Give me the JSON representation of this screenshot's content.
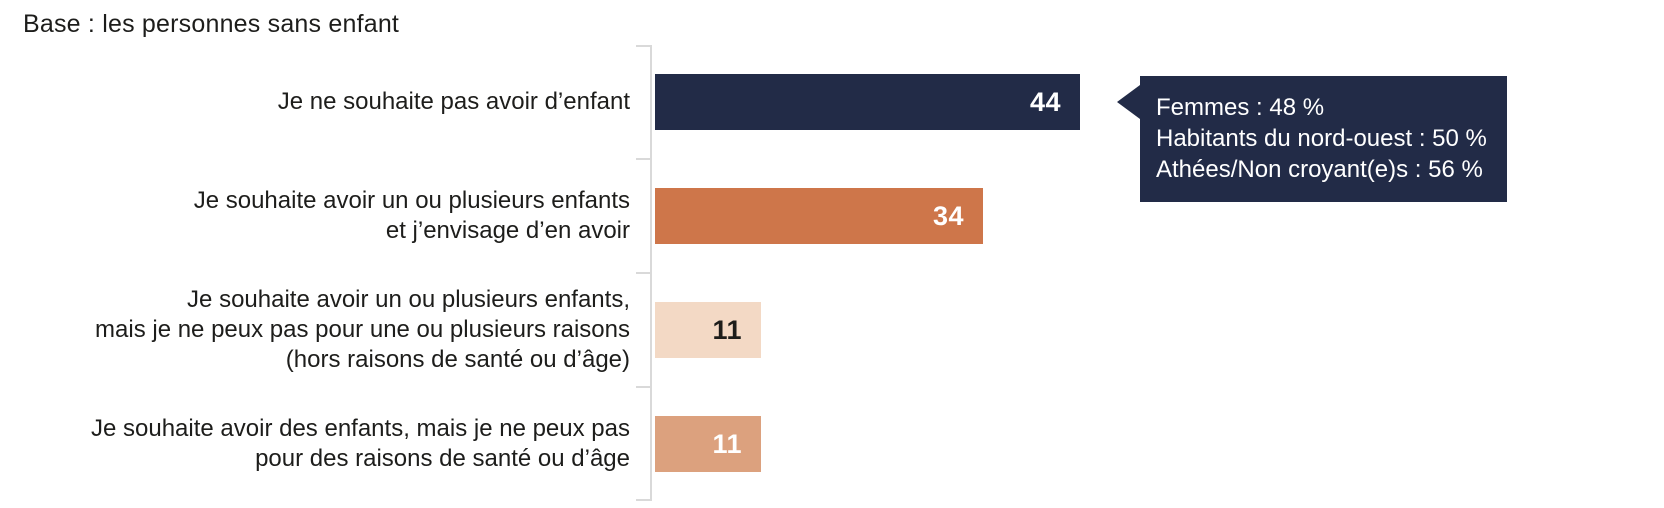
{
  "page": {
    "title": "Base : les personnes sans enfant"
  },
  "chart_data": {
    "type": "bar",
    "orientation": "horizontal",
    "title": "Base : les personnes sans enfant",
    "unit": "%",
    "categories": [
      "Je ne souhaite pas avoir d’enfant",
      "Je souhaite avoir un ou plusieurs enfants\net j’envisage d’en avoir",
      "Je souhaite avoir un ou plusieurs enfants,\nmais je ne peux pas pour une ou plusieurs raisons\n(hors raisons de santé ou d’âge)",
      "Je souhaite avoir des enfants, mais je ne peux pas\npour des raisons de santé ou d’âge"
    ],
    "values": [
      44,
      34,
      11,
      11
    ],
    "xlim": [
      0,
      47
    ],
    "grid": false,
    "legend": false,
    "axis_color": "#d9d9d9",
    "bar_colors": [
      "#222b47",
      "#ce764a",
      "#f3d9c5",
      "#dca17e"
    ],
    "value_label_colors": [
      "#ffffff",
      "#ffffff",
      "#1d1d1b",
      "#ffffff"
    ],
    "annotation": {
      "attached_to_category": "Je ne souhaite pas avoir d’enfant",
      "background": "#222b47",
      "text_color": "#ffffff",
      "lines": [
        "Femmes : 48 %",
        "Habitants du nord-ouest : 50 %",
        "Athées/Non croyant(e)s : 56 %"
      ]
    }
  }
}
